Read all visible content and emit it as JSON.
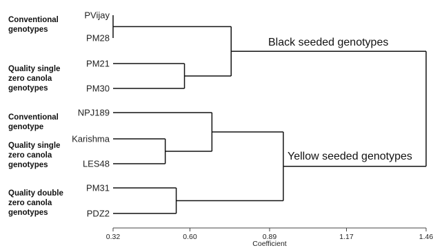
{
  "chart_data": {
    "type": "dendrogram",
    "xlabel": "Coefficient",
    "xlim": [
      0.32,
      1.46
    ],
    "ticks": [
      "0.32",
      "0.60",
      "0.89",
      "1.17",
      "1.46"
    ],
    "tick_values": [
      0.32,
      0.6,
      0.89,
      1.17,
      1.46
    ],
    "leaves": [
      "PVijay",
      "PM28",
      "PM21",
      "PM30",
      "NPJ189",
      "Karishma",
      "LES48",
      "PM31",
      "PDZ2"
    ],
    "merges": [
      {
        "id": "c1",
        "children": [
          "PVijay",
          "PM28"
        ],
        "height": 0.32
      },
      {
        "id": "c2",
        "children": [
          "PM21",
          "PM30"
        ],
        "height": 0.58
      },
      {
        "id": "c3",
        "children": [
          "c1",
          "c2"
        ],
        "height": 0.75
      },
      {
        "id": "c4",
        "children": [
          "Karishma",
          "LES48"
        ],
        "height": 0.51
      },
      {
        "id": "c5",
        "children": [
          "NPJ189",
          "c4"
        ],
        "height": 0.68
      },
      {
        "id": "c6",
        "children": [
          "PM31",
          "PDZ2"
        ],
        "height": 0.55
      },
      {
        "id": "c7",
        "children": [
          "c5",
          "c6"
        ],
        "height": 0.94
      },
      {
        "id": "root",
        "children": [
          "c3",
          "c7"
        ],
        "height": 1.46
      }
    ],
    "annotations": [
      "Black seeded genotypes",
      "Yellow seeded genotypes"
    ]
  },
  "group_labels": [
    "Conventional\ngenotypes",
    "Quality single\nzero  canola\ngenotypes",
    "Conventional\ngenotype",
    "Quality single\nzero canola\ngenotypes",
    "Quality double\nzero  canola\ngenotypes"
  ]
}
